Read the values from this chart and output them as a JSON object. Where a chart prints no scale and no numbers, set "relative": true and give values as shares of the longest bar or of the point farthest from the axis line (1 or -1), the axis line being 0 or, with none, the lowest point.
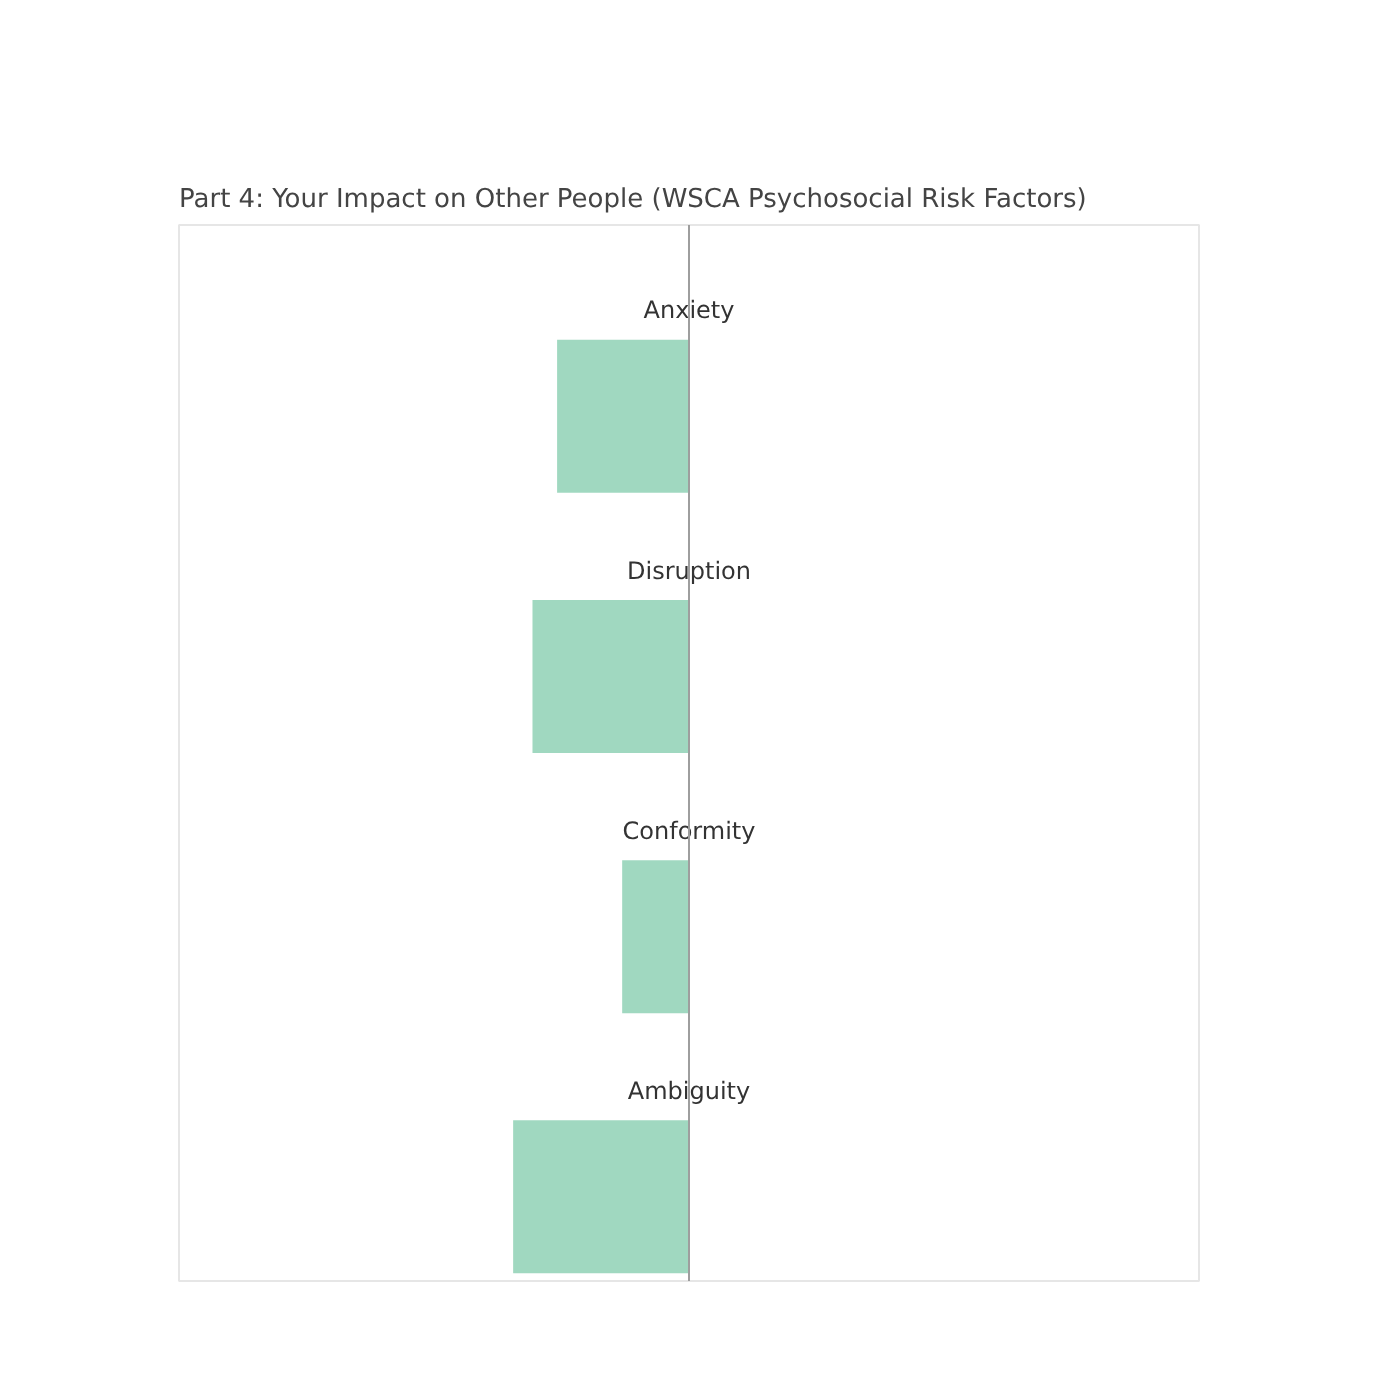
{
  "chart_data": {
    "type": "bar",
    "title": "Part 4: Your Impact on Other People (WSCA Psychosocial Risk Factors)",
    "orientation": "horizontal",
    "relative": true,
    "categories": [
      "Anxiety",
      "Disruption",
      "Conformity",
      "Ambiguity"
    ],
    "values": [
      -0.75,
      -0.89,
      -0.38,
      -1.0
    ],
    "color": "#a0d8c0"
  }
}
